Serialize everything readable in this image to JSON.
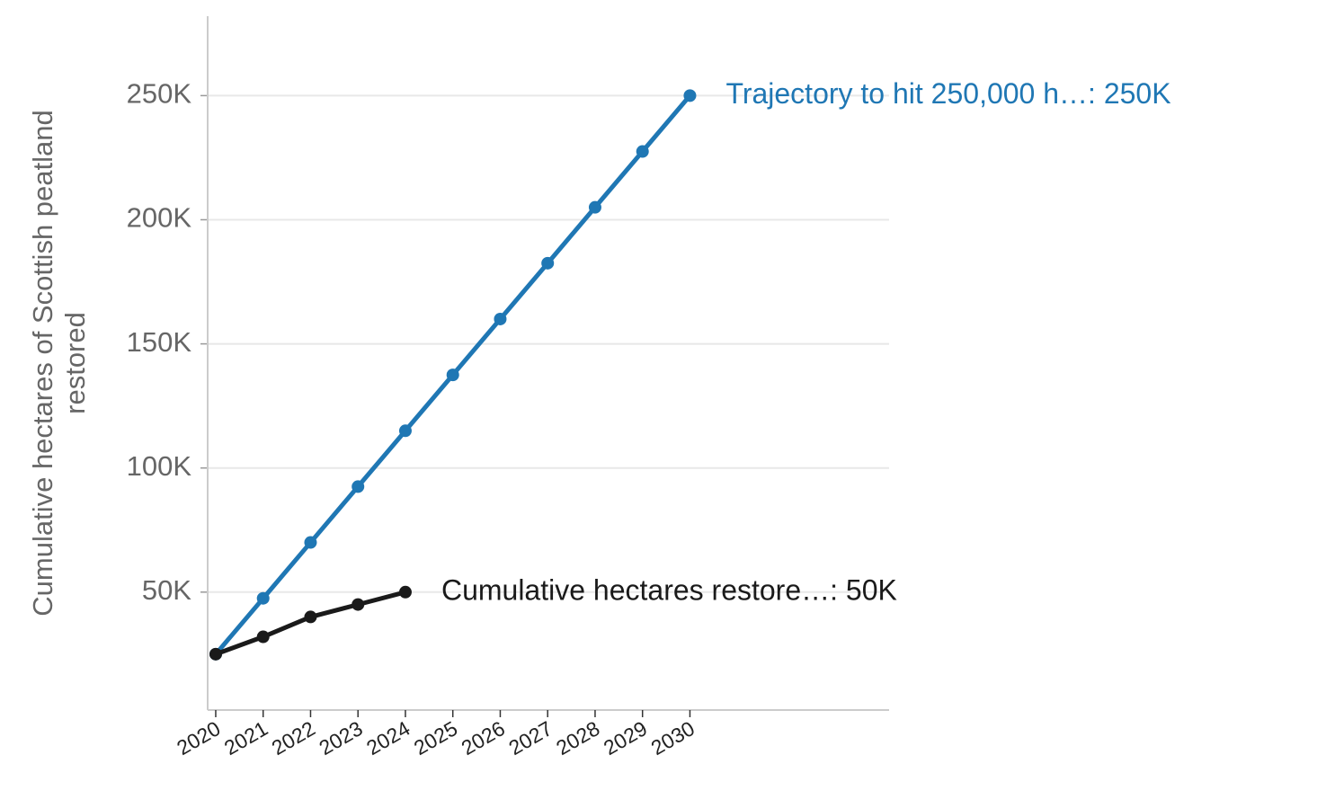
{
  "chart_data": {
    "type": "line",
    "ylabel": [
      "Cumulative hectares of Scottish peatland",
      "restored"
    ],
    "x": [
      2020,
      2021,
      2022,
      2023,
      2024,
      2025,
      2026,
      2027,
      2028,
      2029,
      2030
    ],
    "series": [
      {
        "color": "#1f77b4",
        "label": "Trajectory to hit 250,000 h…: 250K",
        "values": [
          25000,
          47500,
          70000,
          92500,
          115000,
          137500,
          160000,
          182500,
          205000,
          227500,
          250000
        ]
      },
      {
        "color": "#1a1a1a",
        "label": "Cumulative hectares restore…: 50K",
        "values": [
          25000,
          32000,
          40000,
          45000,
          50000,
          null,
          null,
          null,
          null,
          null,
          null
        ]
      }
    ],
    "xlim": [
      2019.83,
      2034.2
    ],
    "xticks": [
      2020,
      2021,
      2022,
      2023,
      2024,
      2025,
      2026,
      2027,
      2028,
      2029,
      2030
    ],
    "ylim": [
      2500,
      282000
    ],
    "yticks": [
      {
        "value": 50000,
        "label": "50K"
      },
      {
        "value": 100000,
        "label": "100K"
      },
      {
        "value": 150000,
        "label": "150K"
      },
      {
        "value": 200000,
        "label": "200K"
      },
      {
        "value": 250000,
        "label": "250K"
      }
    ],
    "grid": true
  }
}
